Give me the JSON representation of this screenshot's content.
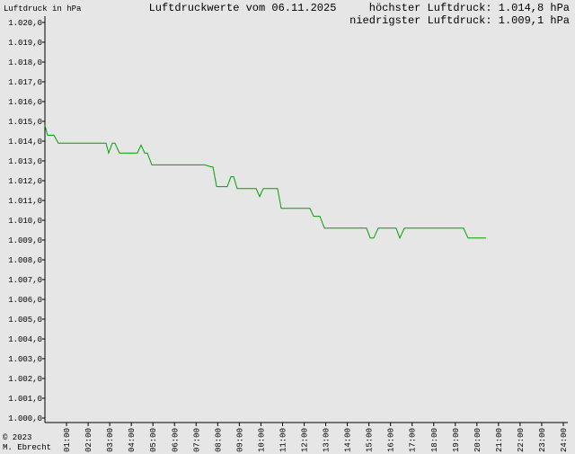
{
  "chart_data": {
    "type": "line",
    "title": "Luftdruckwerte vom 06.11.2025",
    "y_label": "Luftdruck in hPa",
    "max_text": "höchster Luftdruck: 1.014,8 hPa",
    "min_text": "niedrigster Luftdruck: 1.009,1 hPa",
    "copyright": "© 2023",
    "author": "M. Ebrecht",
    "x": [
      0,
      0.12,
      0.42,
      0.62,
      2.83,
      2.95,
      3.12,
      3.24,
      3.45,
      4.28,
      4.45,
      4.62,
      4.74,
      4.95,
      6.66,
      7.4,
      7.7,
      7.78,
      7.95,
      8.44,
      8.61,
      8.74,
      8.9,
      9.78,
      9.94,
      10.11,
      10.77,
      10.94,
      12.27,
      12.44,
      12.73,
      12.94,
      14.89,
      15.06,
      15.22,
      15.43,
      16.26,
      16.43,
      16.64,
      19.38,
      19.59,
      20.42
    ],
    "series": [
      {
        "color": "#00a000",
        "values": [
          1014.8,
          1014.3,
          1014.3,
          1013.9,
          1013.9,
          1013.4,
          1013.9,
          1013.9,
          1013.4,
          1013.4,
          1013.8,
          1013.4,
          1013.4,
          1012.8,
          1012.8,
          1012.8,
          1012.7,
          1012.7,
          1011.7,
          1011.7,
          1012.2,
          1012.2,
          1011.6,
          1011.6,
          1011.2,
          1011.6,
          1011.6,
          1010.6,
          1010.6,
          1010.2,
          1010.2,
          1009.6,
          1009.6,
          1009.1,
          1009.1,
          1009.6,
          1009.6,
          1009.1,
          1009.6,
          1009.6,
          1009.1,
          1009.1
        ]
      }
    ],
    "xlim": [
      0,
      24
    ],
    "xticks": [
      {
        "value": 1,
        "label": "01:00"
      },
      {
        "value": 2,
        "label": "02:00"
      },
      {
        "value": 3,
        "label": "03:00"
      },
      {
        "value": 4,
        "label": "04:00"
      },
      {
        "value": 5,
        "label": "05:00"
      },
      {
        "value": 6,
        "label": "06:00"
      },
      {
        "value": 7,
        "label": "07:00"
      },
      {
        "value": 8,
        "label": "08:00"
      },
      {
        "value": 9,
        "label": "09:00"
      },
      {
        "value": 10,
        "label": "10:00"
      },
      {
        "value": 11,
        "label": "11:00"
      },
      {
        "value": 12,
        "label": "12:00"
      },
      {
        "value": 13,
        "label": "13:00"
      },
      {
        "value": 14,
        "label": "14:00"
      },
      {
        "value": 15,
        "label": "15:00"
      },
      {
        "value": 16,
        "label": "16:00"
      },
      {
        "value": 17,
        "label": "17:00"
      },
      {
        "value": 18,
        "label": "18:00"
      },
      {
        "value": 19,
        "label": "19:00"
      },
      {
        "value": 20,
        "label": "20:00"
      },
      {
        "value": 21,
        "label": "21:00"
      },
      {
        "value": 22,
        "label": "22:00"
      },
      {
        "value": 23,
        "label": "23:00"
      },
      {
        "value": 24,
        "label": "24:00"
      }
    ],
    "ylim": [
      1000,
      1020
    ],
    "yticks": [
      {
        "value": 1000,
        "label": "1.000,0"
      },
      {
        "value": 1001,
        "label": "1.001,0"
      },
      {
        "value": 1002,
        "label": "1.002,0"
      },
      {
        "value": 1003,
        "label": "1.003,0"
      },
      {
        "value": 1004,
        "label": "1.004,0"
      },
      {
        "value": 1005,
        "label": "1.005,0"
      },
      {
        "value": 1006,
        "label": "1.006,0"
      },
      {
        "value": 1007,
        "label": "1.007,0"
      },
      {
        "value": 1008,
        "label": "1.008,0"
      },
      {
        "value": 1009,
        "label": "1.009,0"
      },
      {
        "value": 1010,
        "label": "1.010,0"
      },
      {
        "value": 1011,
        "label": "1.011,0"
      },
      {
        "value": 1012,
        "label": "1.012,0"
      },
      {
        "value": 1013,
        "label": "1.013,0"
      },
      {
        "value": 1014,
        "label": "1.014,0"
      },
      {
        "value": 1015,
        "label": "1.015,0"
      },
      {
        "value": 1016,
        "label": "1.016,0"
      },
      {
        "value": 1017,
        "label": "1.017,0"
      },
      {
        "value": 1018,
        "label": "1.018,0"
      },
      {
        "value": 1019,
        "label": "1.019,0"
      },
      {
        "value": 1020,
        "label": "1.020,0"
      }
    ],
    "grid": false
  }
}
